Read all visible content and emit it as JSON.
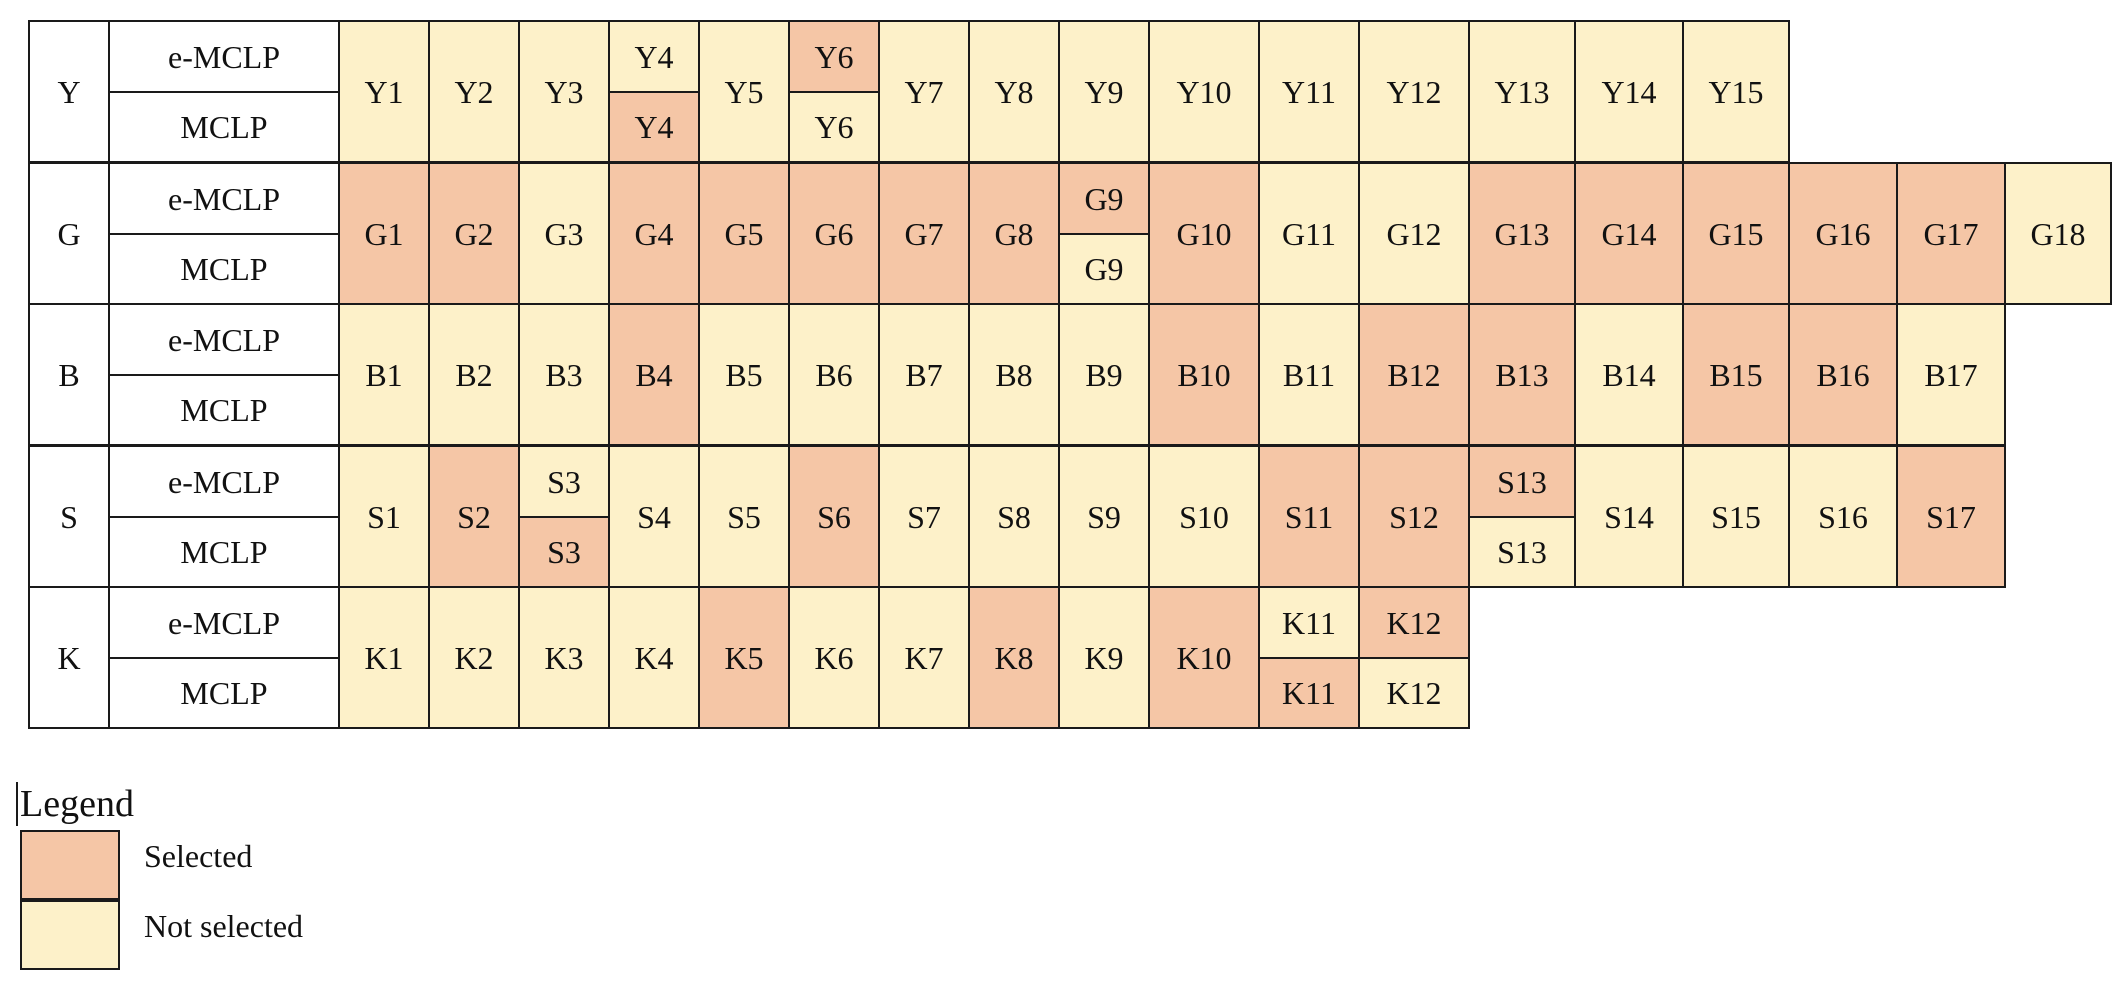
{
  "colors": {
    "selected": "#f5c6a6",
    "not_selected": "#fdf1c9",
    "border": "#1a1a1a"
  },
  "method_labels": [
    "e-MCLP",
    "MCLP"
  ],
  "groups": [
    {
      "code": "Y",
      "cells": [
        [
          "Y1",
          "n"
        ],
        [
          "Y2",
          "n"
        ],
        [
          "Y3",
          "n"
        ],
        [
          "Y4",
          "n",
          "s"
        ],
        [
          "Y5",
          "n"
        ],
        [
          "Y6",
          "s",
          "n"
        ],
        [
          "Y7",
          "n"
        ],
        [
          "Y8",
          "n"
        ],
        [
          "Y9",
          "n"
        ],
        [
          "Y10",
          "n"
        ],
        [
          "Y11",
          "n"
        ],
        [
          "Y12",
          "n"
        ],
        [
          "Y13",
          "n"
        ],
        [
          "Y14",
          "n"
        ],
        [
          "Y15",
          "n"
        ]
      ]
    },
    {
      "code": "G",
      "cells": [
        [
          "G1",
          "s"
        ],
        [
          "G2",
          "s"
        ],
        [
          "G3",
          "n"
        ],
        [
          "G4",
          "s"
        ],
        [
          "G5",
          "s"
        ],
        [
          "G6",
          "s"
        ],
        [
          "G7",
          "s"
        ],
        [
          "G8",
          "s"
        ],
        [
          "G9",
          "s",
          "n"
        ],
        [
          "G10",
          "s"
        ],
        [
          "G11",
          "n"
        ],
        [
          "G12",
          "n"
        ],
        [
          "G13",
          "s"
        ],
        [
          "G14",
          "s"
        ],
        [
          "G15",
          "s"
        ],
        [
          "G16",
          "s"
        ],
        [
          "G17",
          "s"
        ],
        [
          "G18",
          "n"
        ]
      ]
    },
    {
      "code": "B",
      "cells": [
        [
          "B1",
          "n"
        ],
        [
          "B2",
          "n"
        ],
        [
          "B3",
          "n"
        ],
        [
          "B4",
          "s"
        ],
        [
          "B5",
          "n"
        ],
        [
          "B6",
          "n"
        ],
        [
          "B7",
          "n"
        ],
        [
          "B8",
          "n"
        ],
        [
          "B9",
          "n"
        ],
        [
          "B10",
          "s"
        ],
        [
          "B11",
          "n"
        ],
        [
          "B12",
          "s"
        ],
        [
          "B13",
          "s"
        ],
        [
          "B14",
          "n"
        ],
        [
          "B15",
          "s"
        ],
        [
          "B16",
          "s"
        ],
        [
          "B17",
          "n"
        ]
      ]
    },
    {
      "code": "S",
      "cells": [
        [
          "S1",
          "n"
        ],
        [
          "S2",
          "s"
        ],
        [
          "S3",
          "n",
          "s"
        ],
        [
          "S4",
          "n"
        ],
        [
          "S5",
          "n"
        ],
        [
          "S6",
          "s"
        ],
        [
          "S7",
          "n"
        ],
        [
          "S8",
          "n"
        ],
        [
          "S9",
          "n"
        ],
        [
          "S10",
          "n"
        ],
        [
          "S11",
          "s"
        ],
        [
          "S12",
          "s"
        ],
        [
          "S13",
          "s",
          "n"
        ],
        [
          "S14",
          "n"
        ],
        [
          "S15",
          "n"
        ],
        [
          "S16",
          "n"
        ],
        [
          "S17",
          "s"
        ]
      ]
    },
    {
      "code": "K",
      "cells": [
        [
          "K1",
          "n"
        ],
        [
          "K2",
          "n"
        ],
        [
          "K3",
          "n"
        ],
        [
          "K4",
          "n"
        ],
        [
          "K5",
          "s"
        ],
        [
          "K6",
          "n"
        ],
        [
          "K7",
          "n"
        ],
        [
          "K8",
          "s"
        ],
        [
          "K9",
          "n"
        ],
        [
          "K10",
          "s"
        ],
        [
          "K11",
          "n",
          "s"
        ],
        [
          "K12",
          "s",
          "n"
        ]
      ]
    }
  ],
  "legend": {
    "title": "Legend",
    "items": [
      {
        "key": "s",
        "label": "Selected"
      },
      {
        "key": "n",
        "label": "Not selected"
      }
    ]
  }
}
